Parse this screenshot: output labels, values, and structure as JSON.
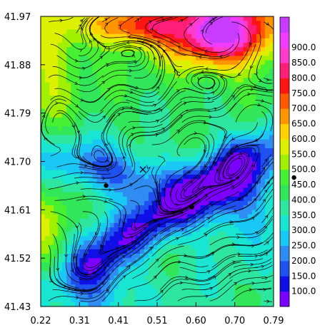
{
  "chart_data": {
    "type": "heatmap",
    "title": "",
    "xlabel": "",
    "ylabel": "",
    "xlim": [
      0.22,
      0.79
    ],
    "ylim": [
      41.43,
      41.97
    ],
    "x_ticks": [
      "0.22",
      "0.31",
      "0.41",
      "0.51",
      "0.60",
      "0.70",
      "0.79"
    ],
    "y_ticks": [
      "41.43",
      "41.52",
      "41.61",
      "41.70",
      "41.79",
      "41.88",
      "41.97"
    ],
    "colorbar": {
      "levels": [
        "100.0",
        "150.0",
        "200.0",
        "250.0",
        "300.0",
        "350.0",
        "400.0",
        "450.0",
        "500.0",
        "550.0",
        "600.0",
        "650.0",
        "700.0",
        "750.0",
        "800.0",
        "850.0",
        "900.0"
      ],
      "colors": [
        "#7b00ff",
        "#1010e6",
        "#1f50f0",
        "#2f8cf2",
        "#19c8f5",
        "#19e6d2",
        "#2de6a0",
        "#32e65a",
        "#46f032",
        "#a0f000",
        "#dcf000",
        "#ffd200",
        "#ff9600",
        "#ff5a00",
        "#ff1414",
        "#ff1e78",
        "#ff3ccd",
        "#f03cff",
        "#c83cff"
      ]
    },
    "overlay": "streamlines",
    "markers": [
      {
        "type": "dot",
        "x": 0.38,
        "y": 41.655
      },
      {
        "type": "dot",
        "x": 0.59,
        "y": 41.615
      },
      {
        "type": "cross",
        "x": 0.47,
        "y": 41.685
      },
      {
        "type": "dot",
        "x": 0.84,
        "y": 41.67
      }
    ]
  }
}
